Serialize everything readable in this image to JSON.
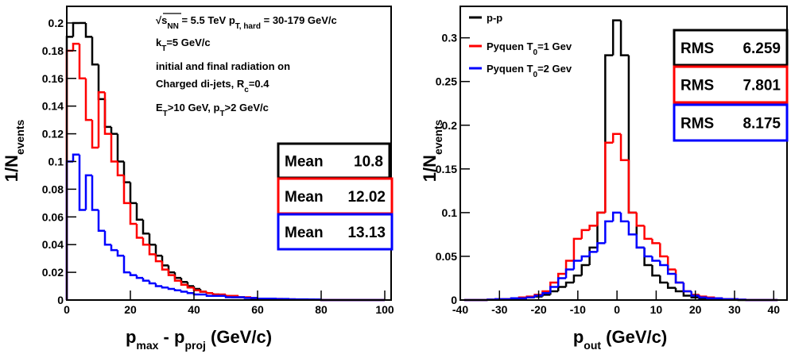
{
  "chart_data": [
    {
      "type": "histogram",
      "annotations": [
        [
          "√s",
          "NN",
          " = 5.5 TeV p",
          "T, hard",
          " = 30-179 GeV/c"
        ],
        [
          "k",
          "T",
          "=5 GeV/c"
        ],
        [
          "initial and final radiation on"
        ],
        [
          "Charged di-jets, R",
          "c",
          "=0.4"
        ],
        [
          "E",
          "T",
          ">10 GeV, p",
          "T",
          ">2 GeV/c"
        ]
      ],
      "x_label": [
        "p",
        "max",
        " - p",
        "proj",
        " (GeV/c)"
      ],
      "y_label": [
        "1/N",
        "events"
      ],
      "xlim": [
        0,
        102
      ],
      "ylim": [
        0,
        0.212
      ],
      "xticks": [
        0,
        20,
        40,
        60,
        80,
        100
      ],
      "yticks": [
        0,
        0.02,
        0.04,
        0.06,
        0.08,
        0.1,
        0.12,
        0.14,
        0.16,
        0.18,
        0.2
      ],
      "bins": [
        0,
        2,
        4,
        6,
        8,
        10,
        12,
        14,
        16,
        18,
        20,
        22,
        24,
        26,
        28,
        30,
        32,
        34,
        36,
        38,
        40,
        42,
        44,
        46,
        48,
        50,
        52,
        54,
        56,
        58,
        60,
        62,
        64,
        66,
        68,
        70,
        72,
        74,
        76,
        78,
        80,
        82,
        84,
        86,
        88,
        90,
        92,
        94,
        96,
        98,
        100
      ],
      "series": [
        {
          "color": "#000000",
          "stat_label": "Mean",
          "stat_value": 10.8,
          "values": [
            0.19,
            0.2,
            0.2,
            0.19,
            0.17,
            0.145,
            0.125,
            0.12,
            0.1,
            0.085,
            0.07,
            0.058,
            0.048,
            0.04,
            0.032,
            0.025,
            0.02,
            0.016,
            0.013,
            0.01,
            0.008,
            0.006,
            0.005,
            0.004,
            0.003,
            0.003,
            0.002,
            0.002,
            0.0015,
            0.001,
            0.001,
            0.001,
            0.0008,
            0.0006,
            0.0005,
            0.0004,
            0.0003,
            0.0003,
            0.0002,
            0.0002,
            0,
            0,
            0,
            0,
            0,
            0,
            0,
            0,
            0,
            0
          ]
        },
        {
          "color": "#ff0000",
          "stat_label": "Mean",
          "stat_value": 12.02,
          "values": [
            0.18,
            0.185,
            0.16,
            0.13,
            0.11,
            0.15,
            0.12,
            0.1,
            0.09,
            0.07,
            0.055,
            0.045,
            0.04,
            0.033,
            0.028,
            0.022,
            0.018,
            0.014,
            0.011,
            0.009,
            0.007,
            0.006,
            0.005,
            0.004,
            0.004,
            0.003,
            0.003,
            0.002,
            0.002,
            0.0015,
            0.001,
            0.001,
            0.001,
            0.0008,
            0.0006,
            0.0005,
            0.0004,
            0.0003,
            0.0003,
            0.0002,
            0,
            0,
            0,
            0,
            0,
            0,
            0,
            0,
            0,
            0
          ]
        },
        {
          "color": "#0000ff",
          "stat_label": "Mean",
          "stat_value": 13.13,
          "values": [
            0.1,
            0.105,
            0.065,
            0.09,
            0.065,
            0.05,
            0.04,
            0.036,
            0.032,
            0.02,
            0.018,
            0.016,
            0.014,
            0.012,
            0.01,
            0.009,
            0.008,
            0.007,
            0.006,
            0.005,
            0.004,
            0.004,
            0.003,
            0.003,
            0.003,
            0.002,
            0.002,
            0.002,
            0.0015,
            0.0015,
            0.001,
            0.001,
            0.001,
            0.0008,
            0.0008,
            0.0006,
            0.0005,
            0.0005,
            0.0004,
            0.0004,
            0,
            0,
            0,
            0,
            0,
            0,
            0,
            0,
            0,
            0
          ]
        }
      ]
    },
    {
      "type": "histogram",
      "x_label": [
        "p",
        "out",
        " (GeV/c)"
      ],
      "y_label": [
        "1/N",
        "events"
      ],
      "xlim": [
        -40,
        43.4
      ],
      "ylim": [
        0,
        0.336
      ],
      "xticks": [
        -40,
        -30,
        -20,
        -10,
        0,
        10,
        20,
        30,
        40
      ],
      "yticks": [
        0,
        0.05,
        0.1,
        0.15,
        0.2,
        0.25,
        0.3
      ],
      "bins": [
        -39,
        -37,
        -35,
        -33,
        -31,
        -29,
        -27,
        -25,
        -23,
        -21,
        -19,
        -17,
        -15,
        -13,
        -11,
        -9,
        -7,
        -5,
        -3,
        -1,
        1,
        3,
        5,
        7,
        9,
        11,
        13,
        15,
        17,
        19,
        21,
        23,
        25,
        27,
        29,
        31,
        33,
        35,
        37,
        39,
        41
      ],
      "series": [
        {
          "name": [
            "p-p"
          ],
          "color": "#000000",
          "stat_label": "RMS",
          "stat_value": 6.259,
          "values": [
            0,
            0,
            0,
            0.0005,
            0.0005,
            0.001,
            0.001,
            0.002,
            0.003,
            0.004,
            0.006,
            0.01,
            0.015,
            0.02,
            0.028,
            0.04,
            0.06,
            0.1,
            0.28,
            0.32,
            0.28,
            0.1,
            0.06,
            0.04,
            0.028,
            0.02,
            0.014,
            0.01,
            0.005,
            0.003,
            0.002,
            0.001,
            0.001,
            0.0005,
            0.0005,
            0,
            0,
            0,
            0,
            0
          ]
        },
        {
          "name": [
            "Pyquen T",
            "0",
            "=1 Gev"
          ],
          "color": "#ff0000",
          "stat_label": "RMS",
          "stat_value": 7.801,
          "values": [
            0,
            0,
            0,
            0.0005,
            0.001,
            0.001,
            0.002,
            0.003,
            0.004,
            0.006,
            0.01,
            0.02,
            0.03,
            0.045,
            0.07,
            0.08,
            0.085,
            0.1,
            0.18,
            0.19,
            0.16,
            0.1,
            0.085,
            0.07,
            0.065,
            0.05,
            0.035,
            0.02,
            0.01,
            0.006,
            0.004,
            0.003,
            0.002,
            0.001,
            0.001,
            0.0005,
            0,
            0,
            0,
            0
          ]
        },
        {
          "name": [
            "Pyquen T",
            "0",
            "=2 Gev"
          ],
          "color": "#0000ff",
          "stat_label": "RMS",
          "stat_value": 8.175,
          "values": [
            0,
            0,
            0,
            0.0005,
            0.001,
            0.001,
            0.002,
            0.002,
            0.003,
            0.005,
            0.008,
            0.015,
            0.025,
            0.035,
            0.045,
            0.05,
            0.055,
            0.065,
            0.09,
            0.1,
            0.09,
            0.075,
            0.06,
            0.05,
            0.045,
            0.04,
            0.03,
            0.02,
            0.01,
            0.005,
            0.003,
            0.002,
            0.002,
            0.001,
            0.001,
            0.0005,
            0,
            0,
            0,
            0
          ]
        }
      ]
    }
  ]
}
